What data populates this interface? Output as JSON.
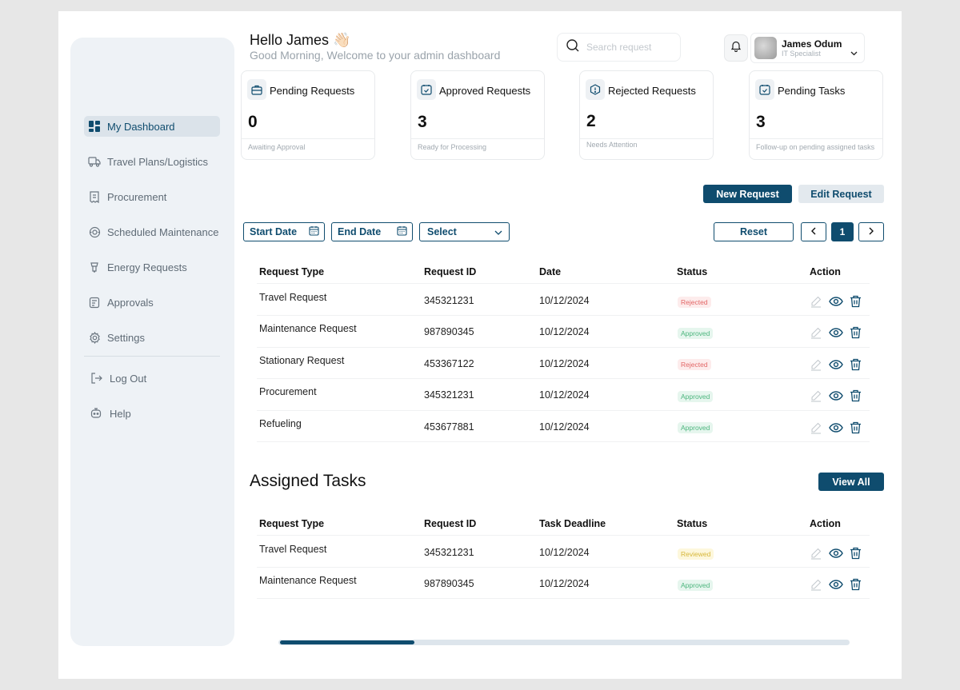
{
  "header": {
    "greeting": "Hello James 👋🏻",
    "subtitle": "Good Morning, Welcome to your admin dashboard"
  },
  "search": {
    "placeholder": "Search request"
  },
  "profile": {
    "name": "James Odum",
    "role": "IT Specialist"
  },
  "sidebar": {
    "items": [
      {
        "label": "My Dashboard",
        "icon": "dashboard-icon",
        "active": true
      },
      {
        "label": "Travel Plans/Logistics",
        "icon": "truck-icon"
      },
      {
        "label": "Procurement",
        "icon": "receipt-icon"
      },
      {
        "label": "Scheduled Maintenance",
        "icon": "maintenance-icon"
      },
      {
        "label": "Energy Requests",
        "icon": "energy-icon"
      },
      {
        "label": "Approvals",
        "icon": "approvals-icon"
      },
      {
        "label": "Settings",
        "icon": "gear-icon"
      }
    ],
    "bottom": [
      {
        "label": "Log Out",
        "icon": "logout-icon"
      },
      {
        "label": "Help",
        "icon": "help-icon"
      }
    ]
  },
  "cards": [
    {
      "title": "Pending Requests",
      "value": "0",
      "note": "Awaiting Approval",
      "icon": "briefcase-icon"
    },
    {
      "title": "Approved Requests",
      "value": "3",
      "note": "Ready for Processing",
      "icon": "calendar-check-icon"
    },
    {
      "title": "Rejected Requests",
      "value": "2",
      "note": "Needs Attention",
      "icon": "alert-icon"
    },
    {
      "title": "Pending Tasks",
      "value": "3",
      "note": "Follow-up on pending assigned tasks",
      "icon": "calendar-check-icon"
    }
  ],
  "actions": {
    "new_request": "New Request",
    "edit_request": "Edit Request"
  },
  "filters": {
    "start_date": "Start Date",
    "end_date": "End Date",
    "select": "Select",
    "reset": "Reset",
    "page": "1"
  },
  "requests": {
    "headers": [
      "Request Type",
      "Request ID",
      "Date",
      "Status",
      "Action"
    ],
    "rows": [
      {
        "type": "Travel Request",
        "id": "345321231",
        "date": "10/12/2024",
        "status": "Rejected"
      },
      {
        "type": "Maintenance Request",
        "id": "987890345",
        "date": "10/12/2024",
        "status": "Approved"
      },
      {
        "type": "Stationary Request",
        "id": "453367122",
        "date": "10/12/2024",
        "status": "Rejected"
      },
      {
        "type": "Procurement",
        "id": "345321231",
        "date": "10/12/2024",
        "status": "Approved"
      },
      {
        "type": "Refueling",
        "id": "453677881",
        "date": "10/12/2024",
        "status": "Approved"
      }
    ]
  },
  "tasks": {
    "title": "Assigned Tasks",
    "view_all": "View All",
    "headers": [
      "Request Type",
      "Request ID",
      "Task Deadline",
      "Status",
      "Action"
    ],
    "rows": [
      {
        "type": "Travel Request",
        "id": "345321231",
        "date": "10/12/2024",
        "status": "Reviewed"
      },
      {
        "type": "Maintenance Request",
        "id": "987890345",
        "date": "10/12/2024",
        "status": "Approved"
      }
    ]
  },
  "colors": {
    "primary": "#0f4c6e",
    "rejected": "#e26666",
    "approved": "#4cb57d",
    "reviewed": "#d7b73a"
  }
}
